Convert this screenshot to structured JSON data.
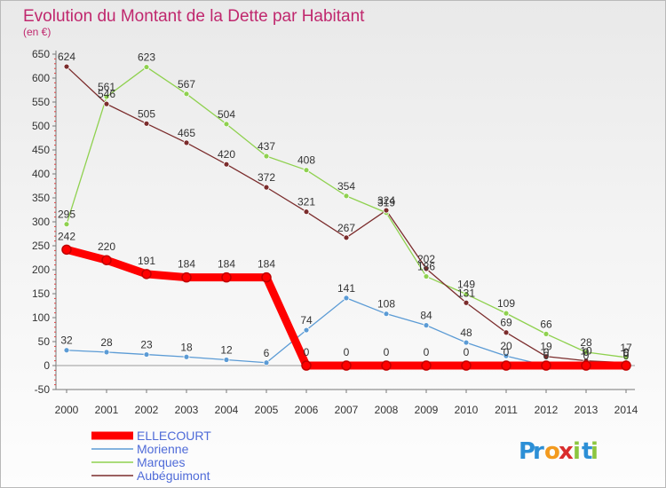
{
  "chart_data": {
    "type": "line",
    "title": "Evolution du Montant de la Dette par Habitant",
    "subtitle": "(en €)",
    "xlabel": "",
    "ylabel": "",
    "categories": [
      "2000",
      "2001",
      "2002",
      "2003",
      "2004",
      "2005",
      "2006",
      "2007",
      "2008",
      "2009",
      "2010",
      "2011",
      "2012",
      "2013",
      "2014"
    ],
    "ylim": [
      -50,
      650
    ],
    "yticks": [
      -50,
      0,
      50,
      100,
      150,
      200,
      250,
      300,
      350,
      400,
      450,
      500,
      550,
      600,
      650
    ],
    "grid": false,
    "legend_position": "bottom-left",
    "series": [
      {
        "name": "ELLECOURT",
        "color": "#ff0000",
        "emphasized": true,
        "values": [
          242,
          220,
          191,
          184,
          184,
          184,
          0,
          0,
          0,
          0,
          0,
          0,
          0,
          0,
          0
        ]
      },
      {
        "name": "Morienne",
        "color": "#5b9bd5",
        "emphasized": false,
        "values": [
          32,
          28,
          23,
          18,
          12,
          6,
          74,
          141,
          108,
          84,
          48,
          20,
          0,
          0,
          0
        ]
      },
      {
        "name": "Marques",
        "color": "#8fd14f",
        "emphasized": false,
        "values": [
          295,
          561,
          623,
          567,
          504,
          437,
          408,
          354,
          319,
          186,
          149,
          109,
          66,
          28,
          17
        ]
      },
      {
        "name": "Aubéguimont",
        "color": "#7b2c2c",
        "emphasized": false,
        "values": [
          624,
          546,
          505,
          465,
          420,
          372,
          321,
          267,
          324,
          202,
          131,
          69,
          19,
          10,
          6
        ]
      }
    ]
  },
  "logo": {
    "text": "Proxiti"
  }
}
